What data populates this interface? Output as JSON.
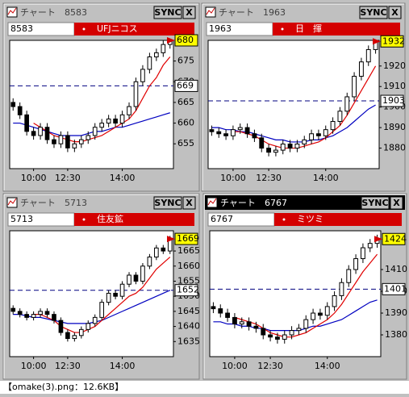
{
  "panels": [
    {
      "window_title": "チャート",
      "code": "8583",
      "name": "UFJニコス",
      "sync": "SYNC",
      "close_label": "X",
      "ylim": [
        649,
        680
      ],
      "yticks": [
        655,
        660,
        665,
        670,
        675
      ],
      "xlim": [
        -0.5,
        23.5
      ],
      "xticks": [
        {
          "value": 3,
          "label": "10:00"
        },
        {
          "value": 8,
          "label": "12:30"
        },
        {
          "value": 16,
          "label": "14:00"
        }
      ],
      "last_price": 680,
      "ref_price": 669,
      "open": [
        665,
        664,
        662,
        658,
        657,
        659,
        656,
        655,
        657,
        654,
        655,
        656,
        657,
        659,
        660,
        661,
        660,
        662,
        664,
        670,
        673,
        676,
        677,
        679
      ],
      "high": [
        666,
        665,
        663,
        659,
        660,
        660,
        657,
        658,
        658,
        656,
        657,
        658,
        660,
        661,
        662,
        662,
        663,
        665,
        671,
        674,
        677,
        678,
        680,
        680
      ],
      "low": [
        663,
        661,
        657,
        656,
        656,
        655,
        654,
        654,
        653,
        653,
        654,
        655,
        656,
        658,
        659,
        659,
        659,
        661,
        663,
        669,
        672,
        675,
        676,
        678
      ],
      "close": [
        664,
        662,
        658,
        657,
        659,
        656,
        655,
        657,
        654,
        655,
        656,
        657,
        659,
        660,
        661,
        660,
        662,
        664,
        670,
        673,
        676,
        677,
        679,
        680
      ],
      "ma_short": [
        null,
        null,
        null,
        660,
        659,
        658,
        657,
        656.5,
        656,
        655.5,
        655.5,
        656,
        656.5,
        657,
        658,
        659,
        660,
        661,
        663,
        666,
        669,
        671,
        674,
        676
      ],
      "ma_long": [
        660,
        660,
        659.5,
        659,
        658.5,
        658,
        657.5,
        657,
        657,
        657,
        657,
        657.5,
        658,
        658,
        658.5,
        659,
        659,
        659.5,
        660,
        660.5,
        661,
        661.5,
        662,
        662.5
      ]
    },
    {
      "window_title": "チャート",
      "code": "1963",
      "name": "日　揮",
      "sync": "SYNC",
      "close_label": "X",
      "ylim": [
        1870,
        1932.5
      ],
      "yticks": [
        1880,
        1890,
        1900,
        1910,
        1920
      ],
      "xlim": [
        -0.5,
        23.5
      ],
      "xticks": [
        {
          "value": 3,
          "label": "10:00"
        },
        {
          "value": 8,
          "label": "12:30"
        },
        {
          "value": 16,
          "label": "14:00"
        }
      ],
      "last_price": 1932,
      "ref_price": 1903,
      "open": [
        1889,
        1888,
        1887,
        1886,
        1889,
        1890,
        1887,
        1885,
        1880,
        1878,
        1879,
        1882,
        1880,
        1882,
        1884,
        1887,
        1886,
        1889,
        1893,
        1898,
        1905,
        1915,
        1922,
        1928
      ],
      "high": [
        1891,
        1890,
        1889,
        1891,
        1892,
        1892,
        1889,
        1887,
        1882,
        1881,
        1884,
        1884,
        1884,
        1886,
        1889,
        1889,
        1891,
        1895,
        1900,
        1907,
        1917,
        1924,
        1930,
        1932
      ],
      "low": [
        1886,
        1885,
        1884,
        1884,
        1887,
        1885,
        1883,
        1878,
        1876,
        1876,
        1877,
        1878,
        1878,
        1880,
        1882,
        1884,
        1884,
        1887,
        1891,
        1896,
        1903,
        1913,
        1920,
        1926
      ],
      "close": [
        1888,
        1887,
        1886,
        1889,
        1890,
        1887,
        1885,
        1880,
        1878,
        1879,
        1882,
        1880,
        1882,
        1884,
        1887,
        1886,
        1889,
        1893,
        1898,
        1905,
        1915,
        1922,
        1928,
        1932
      ],
      "ma_short": [
        null,
        null,
        null,
        1888,
        1888,
        1887,
        1886,
        1884,
        1882,
        1881,
        1880,
        1880,
        1880,
        1881,
        1882,
        1883,
        1885,
        1888,
        1891,
        1896,
        1902,
        1908,
        1914,
        1920
      ],
      "ma_long": [
        1890,
        1890,
        1889,
        1889,
        1888,
        1888,
        1887,
        1886,
        1885,
        1884,
        1884,
        1883,
        1883,
        1883,
        1884,
        1884,
        1885,
        1886,
        1888,
        1890,
        1893,
        1896,
        1899,
        1901
      ]
    },
    {
      "window_title": "チャート",
      "code": "5713",
      "name": "住友鉱",
      "sync": "SYNC",
      "close_label": "X",
      "ylim": [
        1630,
        1671.7
      ],
      "yticks": [
        1635,
        1640,
        1645,
        1650,
        1655,
        1660,
        1665
      ],
      "xlim": [
        -0.5,
        23.5
      ],
      "xticks": [
        {
          "value": 3,
          "label": "10:00"
        },
        {
          "value": 8,
          "label": "12:30"
        },
        {
          "value": 16,
          "label": "14:00"
        }
      ],
      "last_price": 1669,
      "ref_price": 1652,
      "open": [
        1646,
        1645,
        1644,
        1643,
        1644,
        1645,
        1644,
        1642,
        1638,
        1636,
        1637,
        1639,
        1641,
        1643,
        1648,
        1651,
        1650,
        1654,
        1657,
        1655,
        1660,
        1663,
        1666,
        1665
      ],
      "high": [
        1647,
        1646,
        1645,
        1645,
        1646,
        1646,
        1645,
        1643,
        1639,
        1638,
        1640,
        1642,
        1644,
        1649,
        1652,
        1652,
        1655,
        1658,
        1658,
        1661,
        1664,
        1667,
        1667,
        1670
      ],
      "low": [
        1644,
        1643,
        1642,
        1642,
        1643,
        1643,
        1641,
        1637,
        1635,
        1635,
        1636,
        1638,
        1640,
        1642,
        1647,
        1649,
        1649,
        1653,
        1654,
        1654,
        1659,
        1662,
        1664,
        1664
      ],
      "close": [
        1645,
        1644,
        1643,
        1644,
        1645,
        1644,
        1642,
        1638,
        1636,
        1637,
        1639,
        1641,
        1643,
        1648,
        1651,
        1650,
        1654,
        1657,
        1655,
        1660,
        1663,
        1666,
        1665,
        1669
      ],
      "ma_short": [
        null,
        null,
        null,
        1644,
        1644,
        1643,
        1642,
        1640,
        1639,
        1638,
        1638,
        1639,
        1640,
        1642,
        1644,
        1646,
        1648,
        1650,
        1651,
        1653,
        1656,
        1659,
        1661,
        1663
      ],
      "ma_long": [
        1644,
        1644,
        1643.5,
        1643,
        1643,
        1642.5,
        1642,
        1641.5,
        1641,
        1641,
        1641,
        1641,
        1641.5,
        1642,
        1643,
        1644,
        1645,
        1646,
        1647,
        1648,
        1649,
        1650,
        1651,
        1652
      ]
    },
    {
      "window_title": "チャート",
      "code": "6767",
      "name": "ミツミ",
      "sync": "SYNC",
      "close_label": "X",
      "ylim": [
        1370,
        1427.8
      ],
      "yticks": [
        1380,
        1390,
        1400,
        1410
      ],
      "xlim": [
        -0.5,
        23.5
      ],
      "xticks": [
        {
          "value": 3,
          "label": "10:00"
        },
        {
          "value": 8,
          "label": "12:30"
        },
        {
          "value": 16,
          "label": "14:00"
        }
      ],
      "last_price": 1424,
      "ref_price": 1401,
      "open": [
        1393,
        1392,
        1390,
        1388,
        1385,
        1386,
        1384,
        1383,
        1380,
        1379,
        1378,
        1380,
        1382,
        1383,
        1387,
        1390,
        1389,
        1393,
        1398,
        1404,
        1410,
        1415,
        1420,
        1422
      ],
      "high": [
        1395,
        1394,
        1392,
        1390,
        1388,
        1388,
        1386,
        1385,
        1382,
        1381,
        1382,
        1384,
        1385,
        1389,
        1392,
        1392,
        1395,
        1400,
        1406,
        1412,
        1417,
        1422,
        1424,
        1426
      ],
      "low": [
        1390,
        1388,
        1386,
        1383,
        1383,
        1382,
        1381,
        1378,
        1377,
        1376,
        1376,
        1378,
        1380,
        1381,
        1385,
        1387,
        1387,
        1391,
        1396,
        1402,
        1408,
        1413,
        1418,
        1420
      ],
      "close": [
        1392,
        1390,
        1388,
        1385,
        1386,
        1384,
        1383,
        1380,
        1379,
        1378,
        1380,
        1382,
        1383,
        1387,
        1390,
        1389,
        1393,
        1398,
        1404,
        1410,
        1415,
        1420,
        1422,
        1424
      ],
      "ma_short": [
        null,
        null,
        null,
        1388,
        1387,
        1386,
        1385,
        1383,
        1381,
        1380,
        1379,
        1379,
        1380,
        1381,
        1383,
        1385,
        1387,
        1390,
        1394,
        1399,
        1404,
        1409,
        1413,
        1417
      ],
      "ma_long": [
        1386,
        1386,
        1385,
        1385,
        1384,
        1384,
        1383,
        1383,
        1382,
        1382,
        1382,
        1382,
        1382,
        1383,
        1384,
        1384,
        1385,
        1386,
        1387,
        1389,
        1391,
        1393,
        1395,
        1396
      ]
    }
  ],
  "status": "【omake(3).png：12.6KB】"
}
